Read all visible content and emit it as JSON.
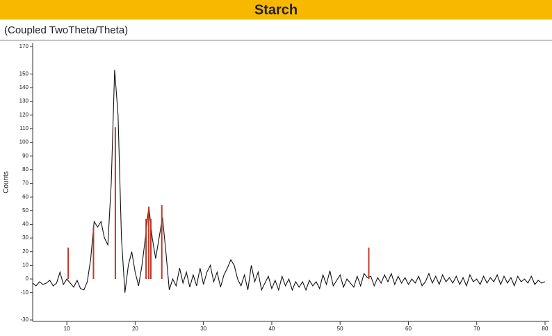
{
  "chart_data": {
    "type": "line",
    "title": "Starch",
    "subtitle": "(Coupled TwoTheta/Theta)",
    "y_label": "Counts",
    "xlim": [
      5,
      80
    ],
    "ylim": [
      -30,
      170
    ],
    "xticks": [
      10,
      20,
      30,
      40,
      50,
      60,
      70,
      80
    ],
    "yticks": [
      170,
      150,
      140,
      130,
      120,
      110,
      100,
      90,
      80,
      70,
      60,
      50,
      40,
      30,
      20,
      10,
      0,
      -10,
      -30
    ],
    "title_bar_color": "#f9b800",
    "series": [
      {
        "color": "#111111",
        "x": [
          5,
          5.5,
          6,
          6.5,
          7,
          7.5,
          8,
          8.5,
          9,
          9.5,
          10,
          10.5,
          11,
          11.5,
          12,
          12.5,
          13,
          13.5,
          14,
          14.5,
          15,
          15.5,
          16,
          16.5,
          17,
          17.5,
          18,
          18.5,
          19,
          19.5,
          20,
          20.5,
          21,
          21.5,
          22,
          22.5,
          23,
          23.5,
          24,
          24.5,
          25,
          25.5,
          26,
          26.5,
          27,
          27.5,
          28,
          28.5,
          29,
          29.5,
          30,
          30.5,
          31,
          31.5,
          32,
          32.5,
          33,
          33.5,
          34,
          34.5,
          35,
          35.5,
          36,
          36.5,
          37,
          37.5,
          38,
          38.5,
          39,
          39.5,
          40,
          40.5,
          41,
          41.5,
          42,
          42.5,
          43,
          43.5,
          44,
          44.5,
          45,
          45.5,
          46,
          46.5,
          47,
          47.5,
          48,
          48.5,
          49,
          49.5,
          50,
          50.5,
          51,
          51.5,
          52,
          52.5,
          53,
          53.5,
          54,
          54.5,
          55,
          55.5,
          56,
          56.5,
          57,
          57.5,
          58,
          58.5,
          59,
          59.5,
          60,
          60.5,
          61,
          61.5,
          62,
          62.5,
          63,
          63.5,
          64,
          64.5,
          65,
          65.5,
          66,
          66.5,
          67,
          67.5,
          68,
          68.5,
          69,
          69.5,
          70,
          70.5,
          71,
          71.5,
          72,
          72.5,
          73,
          73.5,
          74,
          74.5,
          75,
          75.5,
          76,
          76.5,
          77,
          77.5,
          78,
          78.5,
          79,
          79.5,
          80
        ],
        "values": [
          -3,
          -5,
          -2,
          -4,
          -3,
          -1,
          -5,
          -3,
          5,
          -4,
          0,
          -3,
          -6,
          -1,
          -7,
          -8,
          -2,
          15,
          42,
          38,
          42,
          30,
          25,
          70,
          153,
          120,
          30,
          -10,
          10,
          20,
          5,
          -5,
          10,
          30,
          53,
          30,
          15,
          30,
          45,
          20,
          -8,
          0,
          -5,
          8,
          -3,
          5,
          -6,
          3,
          -5,
          8,
          -4,
          5,
          10,
          -2,
          5,
          -6,
          3,
          8,
          14,
          10,
          0,
          -5,
          3,
          -8,
          10,
          -2,
          5,
          -8,
          -3,
          2,
          -7,
          -1,
          -8,
          2,
          -5,
          0,
          -8,
          -2,
          -6,
          -2,
          -8,
          -1,
          -5,
          -2,
          -7,
          3,
          -4,
          6,
          -5,
          -1,
          3,
          -6,
          0,
          -3,
          -6,
          2,
          -5,
          4,
          1,
          2,
          -5,
          1,
          -3,
          3,
          -2,
          4,
          -4,
          2,
          -3,
          1,
          -4,
          0,
          -3,
          2,
          -5,
          -2,
          4,
          -3,
          2,
          -4,
          3,
          -2,
          1,
          -3,
          2,
          -4,
          1,
          -5,
          3,
          -2,
          0,
          -4,
          2,
          -3,
          1,
          -2,
          3,
          -4,
          2,
          -3,
          1,
          -5,
          2,
          -2,
          0,
          -3,
          2,
          -4,
          -1,
          -3,
          -2
        ]
      }
    ],
    "peaks": {
      "color": "#c0392b",
      "x": [
        10.2,
        13.9,
        17.1,
        21.6,
        22.0,
        22.3,
        23.9,
        54.2
      ],
      "values": [
        23,
        38,
        111,
        44,
        52,
        44,
        54,
        23
      ]
    }
  }
}
